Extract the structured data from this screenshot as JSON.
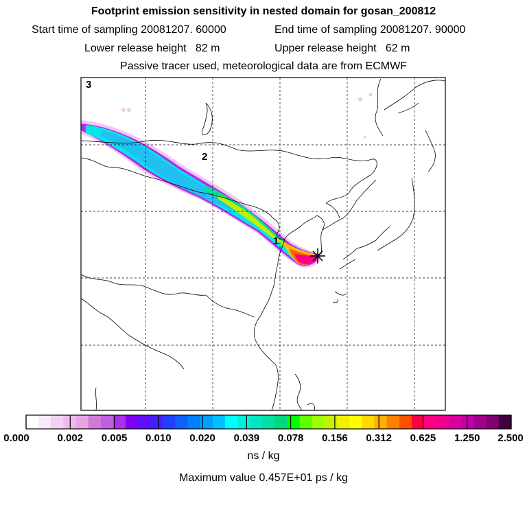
{
  "header": {
    "title": "Footprint emission sensitivity in nested domain for gosan_200812",
    "sampling_start": "Start time of sampling 20081207. 60000",
    "sampling_end": "End time of sampling 20081207. 90000",
    "release_lower": "Lower release height   82 m",
    "release_upper": "Upper release height   62 m",
    "note": "Passive tracer used, meteorological data are from ECMWF"
  },
  "map": {
    "labels": {
      "label_3": "3",
      "label_2": "2",
      "label_1": "1"
    },
    "receptor_marker": "star-marker"
  },
  "colorbar": {
    "ticks": [
      "0.000",
      "0.002",
      "0.005",
      "0.010",
      "0.020",
      "0.039",
      "0.078",
      "0.156",
      "0.312",
      "0.625",
      "1.250",
      "2.500"
    ],
    "colors": [
      "#ffffff",
      "#fbe9fb",
      "#f5d0f5",
      "#eebbee",
      "#e6a6e6",
      "#d07ad8",
      "#c060e0",
      "#a830e8",
      "#8000f0",
      "#6010ff",
      "#4020ff",
      "#2040ff",
      "#1060ff",
      "#0080ff",
      "#00a0ff",
      "#00c0ff",
      "#00ffff",
      "#00f0e0",
      "#00e8c0",
      "#00e0a0",
      "#00d880",
      "#00ff00",
      "#60ff00",
      "#a0ff00",
      "#c8f000",
      "#f0f000",
      "#ffff00",
      "#ffd800",
      "#ffb000",
      "#ff8000",
      "#ff5000",
      "#ff0040",
      "#ff0080",
      "#f00090",
      "#d800a0",
      "#c000a8",
      "#a00090",
      "#800070",
      "#400040"
    ],
    "unit": "ns / kg"
  },
  "footer": {
    "max_value": "Maximum value  0.457E+01 ps / kg"
  }
}
